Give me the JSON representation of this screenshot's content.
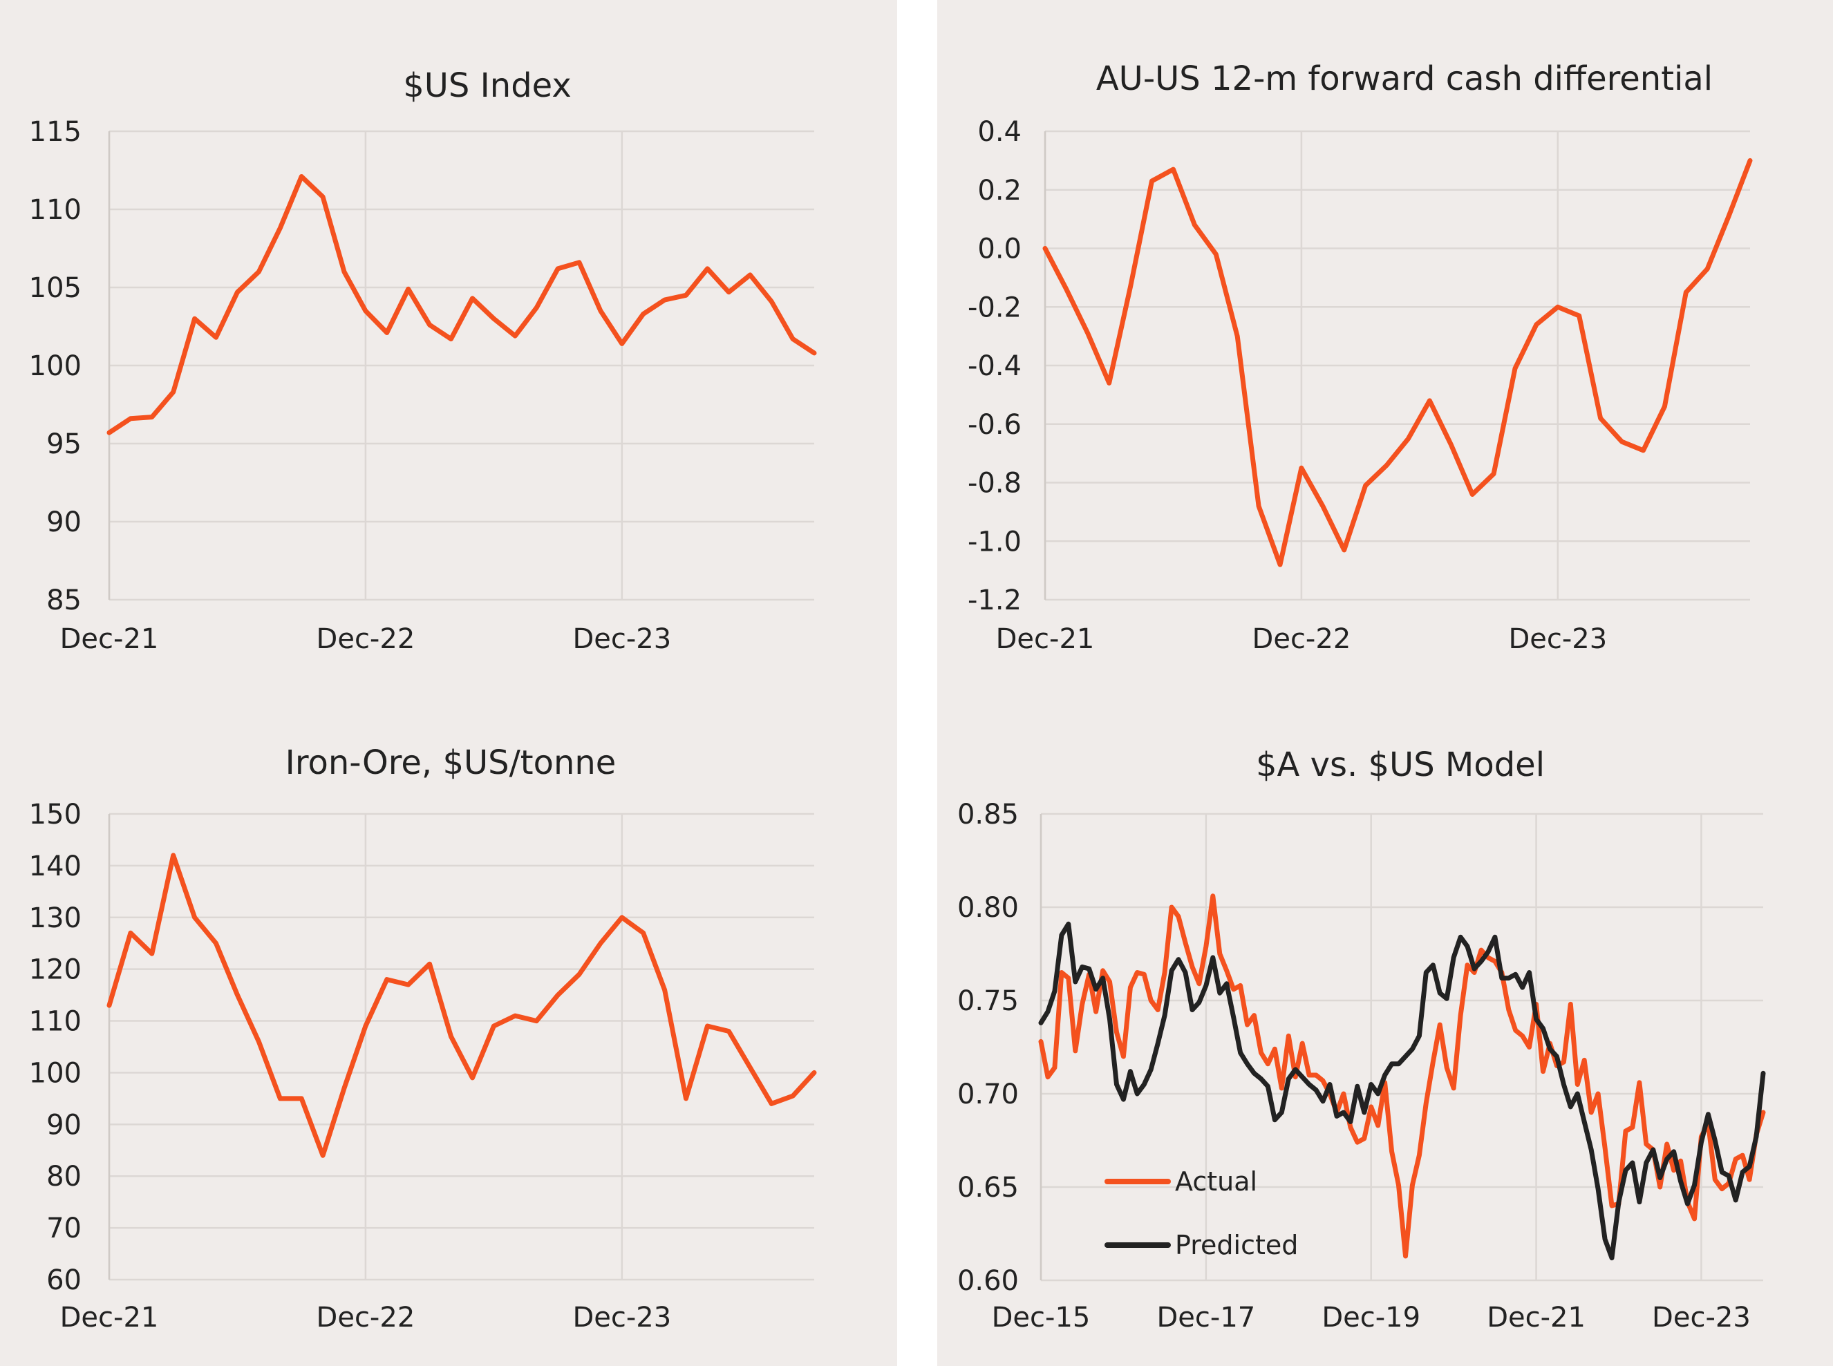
{
  "colors": {
    "background": "#f0ecea",
    "actual": "#f4511e",
    "predicted": "#222222",
    "grid": "#dcd7d4"
  },
  "charts": [
    {
      "id": "usd-index",
      "title": "$US Index",
      "yticks": [
        "115",
        "110",
        "105",
        "100",
        "95",
        "90",
        "85"
      ],
      "xticks": [
        "Dec-21",
        "Dec-22",
        "Dec-23"
      ]
    },
    {
      "id": "au-us-diff",
      "title": "AU-US 12-m forward cash differential",
      "yticks": [
        "0.4",
        "0.2",
        "0.0",
        "-0.2",
        "-0.4",
        "-0.6",
        "-0.8",
        "-1.0",
        "-1.2"
      ],
      "xticks": [
        "Dec-21",
        "Dec-22",
        "Dec-23"
      ]
    },
    {
      "id": "iron-ore",
      "title": "Iron-Ore, $US/tonne",
      "yticks": [
        "150",
        "140",
        "130",
        "120",
        "110",
        "100",
        "90",
        "80",
        "70",
        "60"
      ],
      "xticks": [
        "Dec-21",
        "Dec-22",
        "Dec-23"
      ]
    },
    {
      "id": "aud-model",
      "title": "$A vs. $US Model",
      "yticks": [
        "0.85",
        "0.80",
        "0.75",
        "0.70",
        "0.65",
        "0.60"
      ],
      "xticks": [
        "Dec-15",
        "Dec-17",
        "Dec-19",
        "Dec-21",
        "Dec-23"
      ],
      "legend": [
        "Actual",
        "Predicted"
      ]
    }
  ],
  "chart_data": [
    {
      "type": "line",
      "title": "$US Index",
      "ylim": [
        85,
        115
      ],
      "xlim": [
        0,
        33
      ],
      "grid": true,
      "x_tick_positions": [
        0,
        12,
        24
      ],
      "series": [
        {
          "values": [
            95.7,
            96.6,
            96.7,
            98.3,
            103.0,
            101.8,
            104.7,
            106.0,
            108.8,
            112.1,
            110.8,
            106.0,
            103.5,
            102.1,
            104.9,
            102.6,
            101.7,
            104.3,
            103.0,
            101.9,
            103.7,
            106.2,
            106.6,
            103.5,
            101.4,
            103.3,
            104.2,
            104.5,
            106.2,
            104.7,
            105.8,
            104.1,
            101.7,
            100.8
          ]
        }
      ]
    },
    {
      "type": "line",
      "title": "AU-US 12-m forward cash differential",
      "ylim": [
        -1.2,
        0.4
      ],
      "xlim": [
        0,
        33
      ],
      "grid": true,
      "x_tick_positions": [
        0,
        12,
        24
      ],
      "series": [
        {
          "values": [
            0.0,
            -0.14,
            -0.29,
            -0.46,
            -0.13,
            0.23,
            0.27,
            0.08,
            -0.02,
            -0.3,
            -0.88,
            -1.08,
            -0.75,
            -0.88,
            -1.03,
            -0.81,
            -0.74,
            -0.65,
            -0.52,
            -0.67,
            -0.84,
            -0.77,
            -0.41,
            -0.26,
            -0.2,
            -0.23,
            -0.58,
            -0.66,
            -0.69,
            -0.54,
            -0.15,
            -0.07,
            0.11,
            0.3
          ]
        }
      ]
    },
    {
      "type": "line",
      "title": "Iron-Ore, $US/tonne",
      "ylim": [
        60,
        150
      ],
      "xlim": [
        0,
        33
      ],
      "grid": true,
      "x_tick_positions": [
        0,
        12,
        24
      ],
      "series": [
        {
          "values": [
            113,
            127,
            123,
            142,
            130,
            125,
            115,
            106,
            95,
            95,
            84,
            97,
            109,
            118,
            117,
            121,
            107,
            99,
            109,
            111,
            110,
            115,
            119,
            125,
            130,
            127,
            116,
            95,
            109,
            108,
            101,
            94,
            95.5,
            100
          ]
        }
      ]
    },
    {
      "type": "line",
      "title": "$A vs. $US Model",
      "ylim": [
        0.6,
        0.85
      ],
      "xlim": [
        0,
        105
      ],
      "grid": true,
      "x_tick_positions": [
        0,
        24,
        48,
        72,
        96
      ],
      "series": [
        {
          "name": "Actual",
          "values": [
            0.728,
            0.709,
            0.714,
            0.765,
            0.762,
            0.723,
            0.748,
            0.764,
            0.744,
            0.766,
            0.76,
            0.733,
            0.72,
            0.757,
            0.765,
            0.764,
            0.75,
            0.745,
            0.765,
            0.8,
            0.795,
            0.781,
            0.768,
            0.759,
            0.779,
            0.806,
            0.775,
            0.766,
            0.756,
            0.758,
            0.737,
            0.742,
            0.722,
            0.716,
            0.724,
            0.703,
            0.731,
            0.709,
            0.727,
            0.71,
            0.71,
            0.707,
            0.7,
            0.69,
            0.7,
            0.682,
            0.674,
            0.676,
            0.693,
            0.683,
            0.706,
            0.669,
            0.651,
            0.613,
            0.651,
            0.667,
            0.695,
            0.717,
            0.737,
            0.714,
            0.703,
            0.742,
            0.769,
            0.765,
            0.777,
            0.773,
            0.771,
            0.765,
            0.745,
            0.734,
            0.731,
            0.725,
            0.748,
            0.712,
            0.727,
            0.715,
            0.717,
            0.748,
            0.705,
            0.718,
            0.69,
            0.7,
            0.671,
            0.64,
            0.641,
            0.68,
            0.682,
            0.706,
            0.673,
            0.67,
            0.65,
            0.673,
            0.659,
            0.664,
            0.642,
            0.633,
            0.677,
            0.684,
            0.654,
            0.649,
            0.652,
            0.665,
            0.667,
            0.654,
            0.678,
            0.69
          ]
        },
        {
          "name": "Predicted",
          "values": [
            0.738,
            0.744,
            0.755,
            0.785,
            0.791,
            0.76,
            0.768,
            0.767,
            0.756,
            0.762,
            0.74,
            0.705,
            0.697,
            0.712,
            0.7,
            0.705,
            0.713,
            0.727,
            0.742,
            0.766,
            0.772,
            0.765,
            0.745,
            0.749,
            0.758,
            0.773,
            0.754,
            0.759,
            0.741,
            0.722,
            0.716,
            0.711,
            0.708,
            0.704,
            0.686,
            0.69,
            0.708,
            0.713,
            0.709,
            0.705,
            0.702,
            0.696,
            0.705,
            0.688,
            0.69,
            0.685,
            0.704,
            0.69,
            0.705,
            0.7,
            0.71,
            0.716,
            0.716,
            0.72,
            0.724,
            0.731,
            0.765,
            0.769,
            0.754,
            0.751,
            0.773,
            0.784,
            0.779,
            0.767,
            0.771,
            0.776,
            0.784,
            0.762,
            0.762,
            0.764,
            0.757,
            0.765,
            0.74,
            0.735,
            0.724,
            0.72,
            0.705,
            0.693,
            0.7,
            0.685,
            0.67,
            0.649,
            0.622,
            0.612,
            0.642,
            0.659,
            0.663,
            0.642,
            0.663,
            0.67,
            0.655,
            0.665,
            0.669,
            0.653,
            0.641,
            0.651,
            0.674,
            0.689,
            0.675,
            0.658,
            0.656,
            0.643,
            0.658,
            0.661,
            0.677,
            0.711
          ]
        }
      ],
      "legend_placement": "bottom-left"
    }
  ]
}
